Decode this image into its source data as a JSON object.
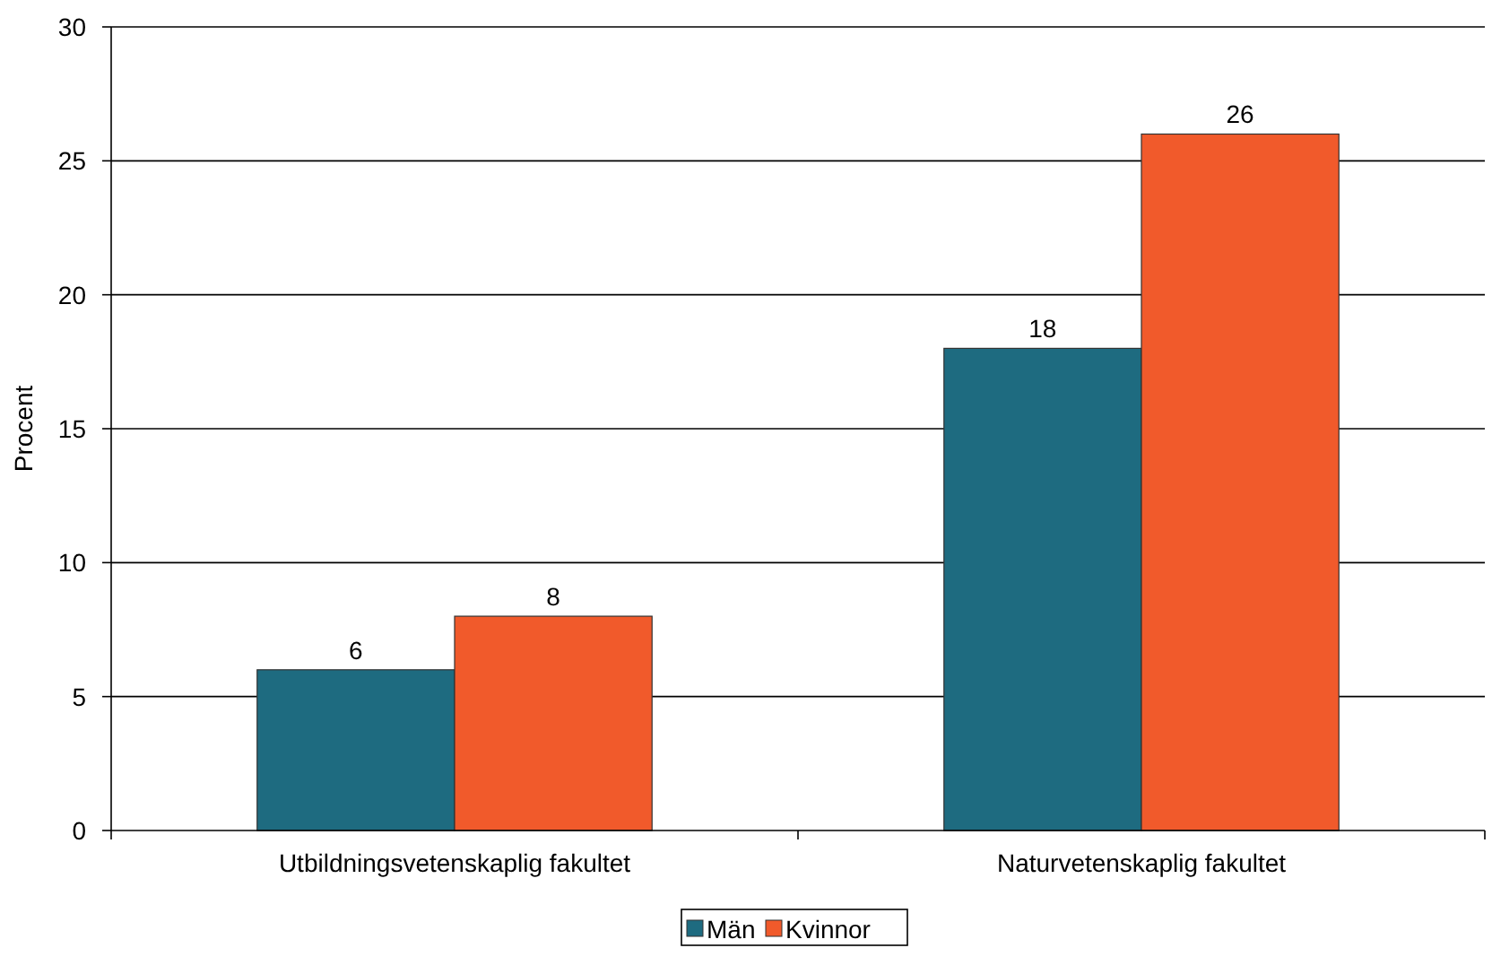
{
  "chart_data": {
    "type": "bar",
    "ylabel": "Procent",
    "categories": [
      "Utbildningsvetenskaplig fakultet",
      "Naturvetenskaplig fakultet"
    ],
    "series": [
      {
        "name": "Män",
        "color": "#1e6b80",
        "values": [
          6,
          18
        ]
      },
      {
        "name": "Kvinnor",
        "color": "#f15a2b",
        "values": [
          8,
          26
        ]
      }
    ],
    "ylim": [
      0,
      30
    ],
    "yticks": [
      0,
      5,
      10,
      15,
      20,
      25,
      30
    ],
    "grid": "y",
    "legend": "bottom",
    "data_labels": true
  }
}
